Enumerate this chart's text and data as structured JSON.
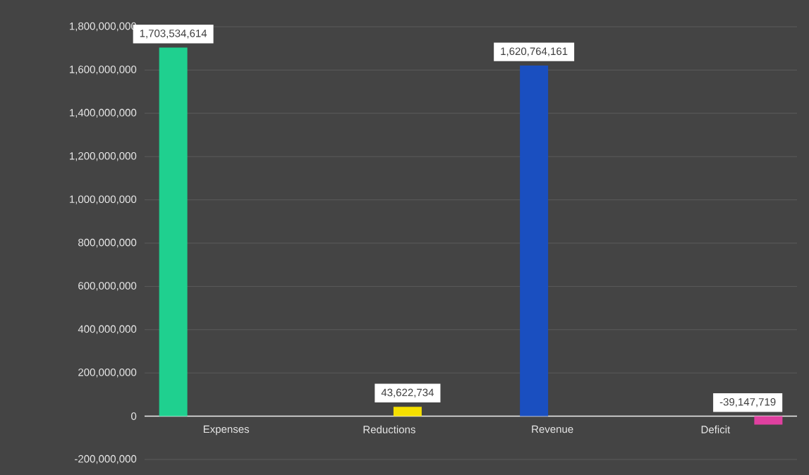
{
  "chart_data": {
    "type": "bar",
    "categories": [
      "Expenses",
      "Reductions",
      "Revenue",
      "Deficit"
    ],
    "values": [
      1703534614,
      43622734,
      1620764161,
      -39147719
    ],
    "colors": [
      "#1fd08f",
      "#f5e000",
      "#1a4fc0",
      "#e040a0"
    ],
    "value_labels": [
      "1,703,534,614",
      "43,622,734",
      "1,620,764,161",
      "-39,147,719"
    ],
    "ylim": [
      -200000000,
      1800000000
    ],
    "yticks": [
      {
        "value": -200000000,
        "label": "-200,000,000"
      },
      {
        "value": 0,
        "label": "0"
      },
      {
        "value": 200000000,
        "label": "200,000,000"
      },
      {
        "value": 400000000,
        "label": "400,000,000"
      },
      {
        "value": 600000000,
        "label": "600,000,000"
      },
      {
        "value": 800000000,
        "label": "800,000,000"
      },
      {
        "value": 1000000000,
        "label": "1,000,000,000"
      },
      {
        "value": 1200000000,
        "label": "1,200,000,000"
      },
      {
        "value": 1400000000,
        "label": "1,400,000,000"
      },
      {
        "value": 1600000000,
        "label": "1,600,000,000"
      },
      {
        "value": 1800000000,
        "label": "1,800,000,000"
      }
    ],
    "grid": "y"
  }
}
